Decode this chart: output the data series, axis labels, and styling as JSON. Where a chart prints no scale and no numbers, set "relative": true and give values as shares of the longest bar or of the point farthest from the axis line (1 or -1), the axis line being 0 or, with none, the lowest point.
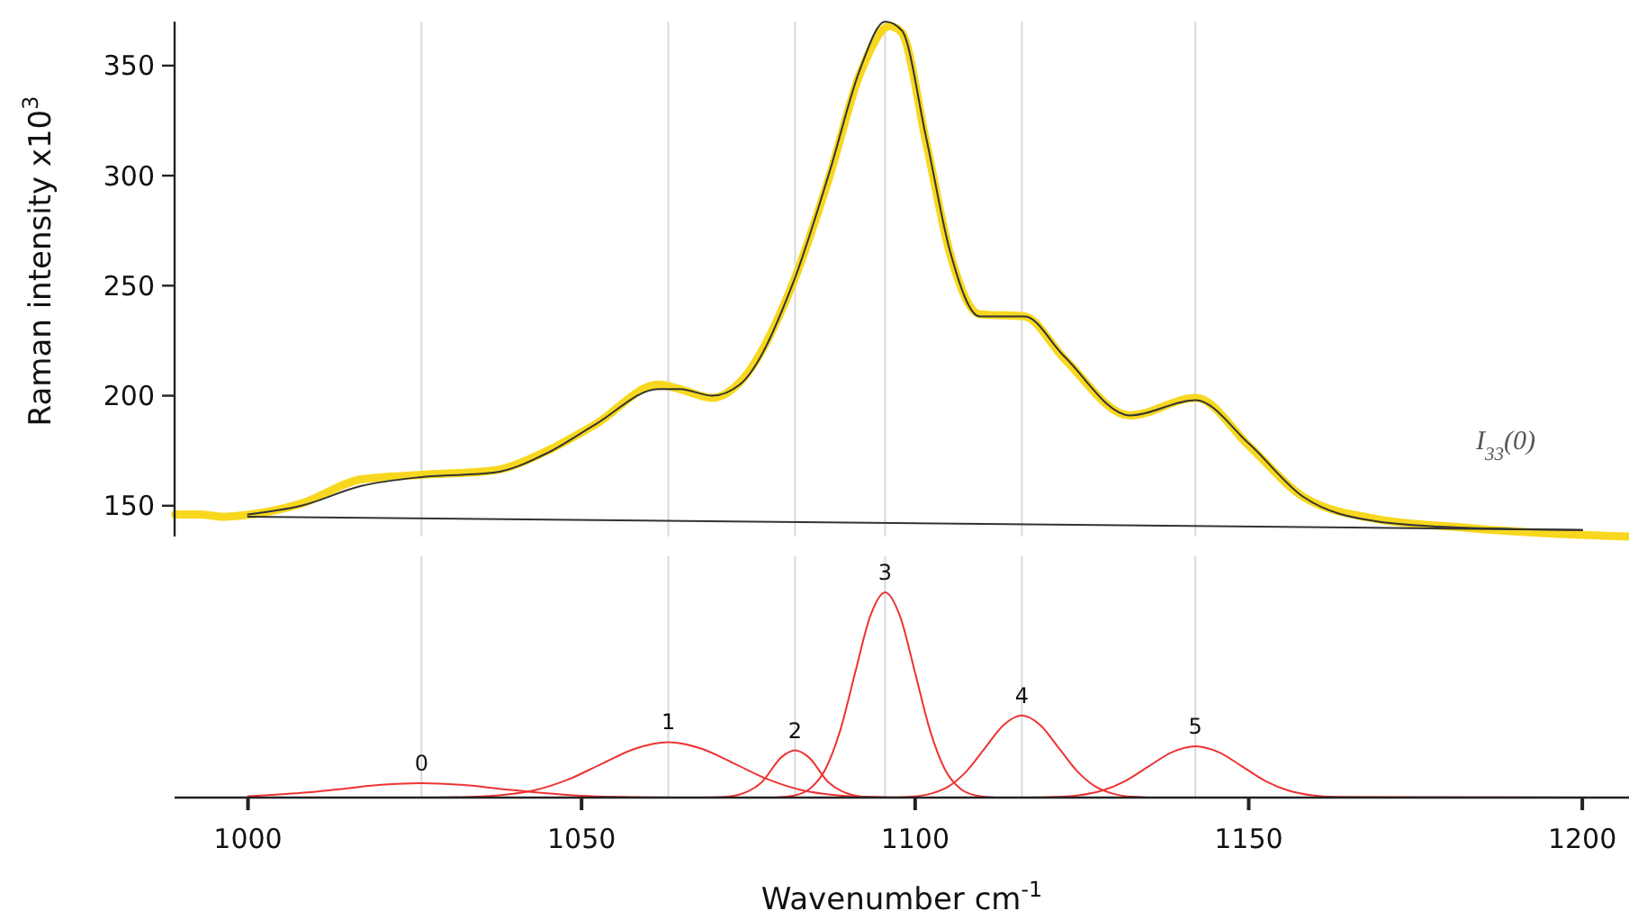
{
  "chart_data": [
    {
      "type": "line",
      "ylabel": "Raman intensity  x10$^{3}$",
      "xlim": [
        989,
        1207
      ],
      "ylim": [
        136,
        370
      ],
      "yticks": [
        150,
        200,
        250,
        300,
        350
      ],
      "tick_labels": "y",
      "annotations": [
        "I$_{33}$(0)"
      ],
      "ref_lines": [
        {
          "axis": "x",
          "value": 1026,
          "color": "#d9d9d9"
        },
        {
          "axis": "x",
          "value": 1063,
          "color": "#d9d9d9"
        },
        {
          "axis": "x",
          "value": 1082,
          "color": "#d9d9d9"
        },
        {
          "axis": "x",
          "value": 1095.5,
          "color": "#d9d9d9"
        },
        {
          "axis": "x",
          "value": 1116,
          "color": "#d9d9d9"
        },
        {
          "axis": "x",
          "value": 1142,
          "color": "#d9d9d9"
        }
      ],
      "series": [
        {
          "color": "#f7d81e",
          "x": [
            989.1,
            992.7,
            996.3,
            1000.4,
            1008,
            1017,
            1026,
            1036.8,
            1044.9,
            1052.1,
            1061.5,
            1064.7,
            1069.6,
            1073.7,
            1081.8,
            1087.2,
            1091.7,
            1096.2,
            1098,
            1101.6,
            1105.2,
            1109.7,
            1116.4,
            1122.3,
            1132.2,
            1142.1,
            1150.1,
            1158.2,
            1169,
            1182.5,
            1191.5,
            1206.8
          ],
          "values": [
            146,
            146,
            145,
            146,
            151,
            162,
            164,
            166,
            175,
            187,
            205,
            203,
            199,
            206,
            252,
            300,
            346,
            368,
            365,
            316,
            265,
            237,
            236,
            217,
            191,
            199,
            177,
            154,
            144,
            140,
            138,
            136
          ]
        },
        {
          "color": "#333333",
          "x": [
            1000,
            1008,
            1017,
            1026,
            1036.8,
            1044.9,
            1052.1,
            1061.5,
            1064.7,
            1069.6,
            1073.7,
            1081.8,
            1087.2,
            1091.7,
            1095.5,
            1098,
            1101.6,
            1105.2,
            1109.7,
            1116.4,
            1122.3,
            1132.2,
            1142,
            1150.1,
            1158.2,
            1169,
            1182.5,
            1200
          ],
          "values": [
            146,
            150,
            159,
            163,
            165,
            174,
            187,
            203,
            203,
            200,
            205,
            252,
            302,
            348,
            370,
            366,
            318,
            266,
            236,
            236,
            218,
            191,
            198,
            178,
            154,
            143,
            140,
            139
          ]
        },
        {
          "color": "#333333",
          "x": [
            1000,
            1200
          ],
          "values": [
            145,
            139
          ]
        }
      ]
    },
    {
      "type": "line",
      "relative": true,
      "xlabel": "Wavenumber cm$^{-1}$",
      "xlim": [
        989,
        1207
      ],
      "xticks": [
        1000,
        1050,
        1100,
        1150,
        1200
      ],
      "ref_lines": [
        {
          "axis": "x",
          "value": 1026,
          "color": "#d9d9d9"
        },
        {
          "axis": "x",
          "value": 1063,
          "color": "#d9d9d9"
        },
        {
          "axis": "x",
          "value": 1082,
          "color": "#d9d9d9"
        },
        {
          "axis": "x",
          "value": 1095.5,
          "color": "#d9d9d9"
        },
        {
          "axis": "x",
          "value": 1116,
          "color": "#d9d9d9"
        },
        {
          "axis": "x",
          "value": 1142,
          "color": "#d9d9d9"
        }
      ],
      "series": [
        {
          "name": "0",
          "color": "#ee3333",
          "x": [
            1000,
            1008,
            1014,
            1020,
            1026,
            1032,
            1038,
            1044,
            1050,
            1056,
            1064
          ],
          "values": [
            0.007,
            0.023,
            0.042,
            0.062,
            0.07,
            0.062,
            0.042,
            0.023,
            0.009,
            0.003,
            0
          ]
        },
        {
          "name": "1",
          "color": "#ee3333",
          "x": [
            1028,
            1033,
            1038,
            1043,
            1048,
            1053,
            1058,
            1063,
            1068,
            1073,
            1078,
            1083,
            1088,
            1093,
            1100
          ],
          "values": [
            0,
            0.003,
            0.012,
            0.036,
            0.088,
            0.164,
            0.238,
            0.27,
            0.238,
            0.164,
            0.088,
            0.036,
            0.012,
            0.003,
            0
          ]
        },
        {
          "name": "2",
          "color": "#ee3333",
          "x": [
            1068,
            1071.5,
            1075,
            1077,
            1080,
            1082,
            1084,
            1087,
            1089,
            1092.5,
            1096
          ],
          "values": [
            0,
            0.003,
            0.031,
            0.075,
            0.198,
            0.23,
            0.198,
            0.075,
            0.031,
            0.003,
            0
          ]
        },
        {
          "name": "3",
          "color": "#ee3333",
          "x": [
            1079,
            1082,
            1084.25,
            1086.5,
            1088.75,
            1091,
            1093.25,
            1095.5,
            1097.75,
            1100,
            1102.25,
            1104.5,
            1106.75,
            1109,
            1112
          ],
          "values": [
            0,
            0.011,
            0.044,
            0.135,
            0.325,
            0.607,
            0.882,
            1,
            0.882,
            0.607,
            0.325,
            0.135,
            0.044,
            0.011,
            0
          ]
        },
        {
          "name": "4",
          "color": "#ee3333",
          "x": [
            1097,
            1099.5,
            1102.25,
            1105,
            1107.75,
            1110.5,
            1113.25,
            1116,
            1118.75,
            1121.5,
            1124.25,
            1127,
            1129.75,
            1132.5,
            1136
          ],
          "values": [
            0,
            0.004,
            0.018,
            0.054,
            0.13,
            0.243,
            0.353,
            0.4,
            0.353,
            0.243,
            0.13,
            0.054,
            0.018,
            0.004,
            0
          ]
        },
        {
          "name": "5",
          "color": "#ee3333",
          "x": [
            1117,
            1121,
            1124.5,
            1128,
            1131.5,
            1135,
            1138.5,
            1142,
            1145.5,
            1149,
            1152.5,
            1156,
            1159.5,
            1163,
            1200
          ],
          "values": [
            0,
            0.003,
            0.011,
            0.034,
            0.081,
            0.152,
            0.221,
            0.25,
            0.221,
            0.152,
            0.081,
            0.034,
            0.011,
            0.003,
            0
          ]
        }
      ]
    }
  ]
}
